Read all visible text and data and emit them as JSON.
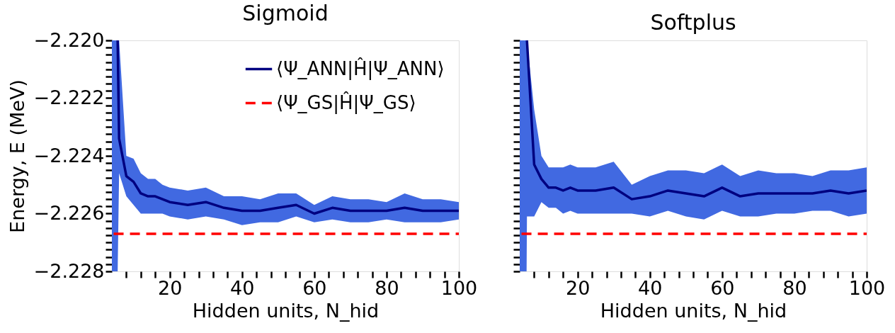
{
  "chart_data": [
    {
      "type": "line",
      "title": "Sigmoid",
      "xlabel": "Hidden units, N_hid",
      "ylabel": "Energy, E (MeV)",
      "xlim": [
        4,
        100
      ],
      "ylim": [
        -2.228,
        -2.22
      ],
      "legend": "top right",
      "grid": false,
      "xticks": [
        {
          "value": 8,
          "label": null
        },
        {
          "value": 12,
          "label": null
        },
        {
          "value": 16,
          "label": null
        },
        20,
        {
          "value": 24,
          "label": null
        },
        {
          "value": 28,
          "label": null
        },
        {
          "value": 32,
          "label": null
        },
        {
          "value": 36,
          "label": null
        },
        40,
        {
          "value": 44,
          "label": null
        },
        {
          "value": 48,
          "label": null
        },
        {
          "value": 52,
          "label": null
        },
        {
          "value": 56,
          "label": null
        },
        60,
        {
          "value": 64,
          "label": null
        },
        {
          "value": 68,
          "label": null
        },
        {
          "value": 72,
          "label": null
        },
        {
          "value": 76,
          "label": null
        },
        80,
        {
          "value": 84,
          "label": null
        },
        {
          "value": 88,
          "label": null
        },
        {
          "value": 92,
          "label": null
        },
        {
          "value": 96,
          "label": null
        },
        100
      ],
      "yticks": [
        {
          "value": -2.228,
          "label": "−2.228"
        },
        {
          "value": -2.22775,
          "label": null
        },
        {
          "value": -2.2275,
          "label": null
        },
        {
          "value": -2.22725,
          "label": null
        },
        {
          "value": -2.227,
          "label": null
        },
        {
          "value": -2.22675,
          "label": null
        },
        {
          "value": -2.2265,
          "label": null
        },
        {
          "value": -2.22625,
          "label": null
        },
        {
          "value": -2.226,
          "label": "−2.226"
        },
        {
          "value": -2.22575,
          "label": null
        },
        {
          "value": -2.2255,
          "label": null
        },
        {
          "value": -2.22525,
          "label": null
        },
        {
          "value": -2.225,
          "label": null
        },
        {
          "value": -2.22475,
          "label": null
        },
        {
          "value": -2.2245,
          "label": null
        },
        {
          "value": -2.22425,
          "label": null
        },
        {
          "value": -2.224,
          "label": "−2.224"
        },
        {
          "value": -2.22375,
          "label": null
        },
        {
          "value": -2.2235,
          "label": null
        },
        {
          "value": -2.22325,
          "label": null
        },
        {
          "value": -2.223,
          "label": null
        },
        {
          "value": -2.22275,
          "label": null
        },
        {
          "value": -2.2225,
          "label": null
        },
        {
          "value": -2.22225,
          "label": null
        },
        {
          "value": -2.222,
          "label": "−2.222"
        },
        {
          "value": -2.22175,
          "label": null
        },
        {
          "value": -2.2215,
          "label": null
        },
        {
          "value": -2.22125,
          "label": null
        },
        {
          "value": -2.221,
          "label": null
        },
        {
          "value": -2.22075,
          "label": null
        },
        {
          "value": -2.2205,
          "label": null
        },
        {
          "value": -2.22025,
          "label": null
        },
        {
          "value": -2.22,
          "label": "−2.220"
        }
      ],
      "series": [
        {
          "name": "⟨Ψ_ANN|Ĥ|Ψ_ANN⟩",
          "color": "#000080",
          "line_style": "solid",
          "x": [
            4,
            5.6,
            6,
            8,
            10,
            12,
            14,
            16,
            18,
            20,
            25,
            30,
            35,
            40,
            45,
            50,
            55,
            60,
            65,
            70,
            75,
            80,
            85,
            90,
            95,
            100
          ],
          "values": [
            null,
            -2.22,
            -2.2234,
            -2.2247,
            -2.2249,
            -2.2253,
            -2.2254,
            -2.2254,
            -2.2255,
            -2.2256,
            -2.2257,
            -2.2256,
            -2.2258,
            -2.2259,
            -2.2259,
            -2.2258,
            -2.2257,
            -2.226,
            -2.2258,
            -2.2259,
            -2.2259,
            -2.2259,
            -2.2258,
            -2.2259,
            -2.2259,
            -2.2259
          ],
          "lower": [
            -2.228,
            -2.228,
            -2.2246,
            -2.2254,
            -2.2257,
            -2.226,
            -2.226,
            -2.226,
            -2.226,
            -2.2261,
            -2.2262,
            -2.2261,
            -2.2262,
            -2.2264,
            -2.2263,
            -2.2263,
            -2.2261,
            -2.2263,
            -2.2262,
            -2.2263,
            -2.2263,
            -2.2262,
            -2.2263,
            -2.2263,
            -2.2263,
            -2.2262
          ],
          "upper": [
            -2.22,
            -2.22,
            -2.22,
            -2.224,
            -2.2241,
            -2.2246,
            -2.2248,
            -2.2248,
            -2.225,
            -2.2251,
            -2.2252,
            -2.2251,
            -2.2254,
            -2.2254,
            -2.2255,
            -2.2253,
            -2.2253,
            -2.2257,
            -2.2254,
            -2.2255,
            -2.2255,
            -2.2256,
            -2.2253,
            -2.2255,
            -2.2255,
            -2.2256
          ]
        },
        {
          "name": "⟨Ψ_GS|Ĥ|Ψ_GS⟩",
          "color": "#ff0000",
          "line_style": "dashed",
          "x": [
            4.5,
            100
          ],
          "values": [
            -2.2267,
            -2.2267
          ]
        }
      ]
    },
    {
      "type": "line",
      "title": "Softplus",
      "xlabel": "Hidden units, N_hid",
      "xlim": [
        4,
        100
      ],
      "ylim": [
        -2.228,
        -2.22
      ],
      "legend": false,
      "grid": false,
      "tick_labels": "x",
      "xticks": [
        {
          "value": 8,
          "label": null
        },
        {
          "value": 12,
          "label": null
        },
        {
          "value": 16,
          "label": null
        },
        20,
        {
          "value": 24,
          "label": null
        },
        {
          "value": 28,
          "label": null
        },
        {
          "value": 32,
          "label": null
        },
        {
          "value": 36,
          "label": null
        },
        40,
        {
          "value": 44,
          "label": null
        },
        {
          "value": 48,
          "label": null
        },
        {
          "value": 52,
          "label": null
        },
        {
          "value": 56,
          "label": null
        },
        60,
        {
          "value": 64,
          "label": null
        },
        {
          "value": 68,
          "label": null
        },
        {
          "value": 72,
          "label": null
        },
        {
          "value": 76,
          "label": null
        },
        80,
        {
          "value": 84,
          "label": null
        },
        {
          "value": 88,
          "label": null
        },
        {
          "value": 92,
          "label": null
        },
        {
          "value": 96,
          "label": null
        },
        100
      ],
      "yticks": [
        {
          "value": -2.228,
          "label": null
        },
        {
          "value": -2.22775,
          "label": null
        },
        {
          "value": -2.2275,
          "label": null
        },
        {
          "value": -2.22725,
          "label": null
        },
        {
          "value": -2.227,
          "label": null
        },
        {
          "value": -2.22675,
          "label": null
        },
        {
          "value": -2.2265,
          "label": null
        },
        {
          "value": -2.22625,
          "label": null
        },
        {
          "value": -2.226,
          "label": null
        },
        {
          "value": -2.22575,
          "label": null
        },
        {
          "value": -2.2255,
          "label": null
        },
        {
          "value": -2.22525,
          "label": null
        },
        {
          "value": -2.225,
          "label": null
        },
        {
          "value": -2.22475,
          "label": null
        },
        {
          "value": -2.2245,
          "label": null
        },
        {
          "value": -2.22425,
          "label": null
        },
        {
          "value": -2.224,
          "label": null
        },
        {
          "value": -2.22375,
          "label": null
        },
        {
          "value": -2.2235,
          "label": null
        },
        {
          "value": -2.22325,
          "label": null
        },
        {
          "value": -2.223,
          "label": null
        },
        {
          "value": -2.22275,
          "label": null
        },
        {
          "value": -2.2225,
          "label": null
        },
        {
          "value": -2.22225,
          "label": null
        },
        {
          "value": -2.222,
          "label": null
        },
        {
          "value": -2.22175,
          "label": null
        },
        {
          "value": -2.2215,
          "label": null
        },
        {
          "value": -2.22125,
          "label": null
        },
        {
          "value": -2.221,
          "label": null
        },
        {
          "value": -2.22075,
          "label": null
        },
        {
          "value": -2.2205,
          "label": null
        },
        {
          "value": -2.22025,
          "label": null
        },
        {
          "value": -2.22,
          "label": null
        }
      ],
      "series": [
        {
          "color": "#000080",
          "line_style": "solid",
          "x": [
            4,
            5.9,
            6,
            8,
            10,
            12,
            14,
            16,
            18,
            20,
            25,
            30,
            35,
            40,
            45,
            50,
            55,
            60,
            65,
            70,
            75,
            80,
            85,
            90,
            95,
            100
          ],
          "values": [
            null,
            null,
            -2.22,
            -2.2243,
            -2.2248,
            -2.2251,
            -2.2251,
            -2.2252,
            -2.2251,
            -2.2252,
            -2.2252,
            -2.2251,
            -2.2255,
            -2.2254,
            -2.2252,
            -2.2253,
            -2.2254,
            -2.2251,
            -2.2254,
            -2.2253,
            -2.2253,
            -2.2253,
            -2.2253,
            -2.2252,
            -2.2253,
            -2.2252
          ],
          "lower": [
            -2.228,
            -2.228,
            -2.2261,
            -2.2261,
            -2.2256,
            -2.2258,
            -2.2258,
            -2.226,
            -2.2259,
            -2.226,
            -2.226,
            -2.226,
            -2.226,
            -2.2261,
            -2.2259,
            -2.2261,
            -2.2262,
            -2.2259,
            -2.2261,
            -2.2261,
            -2.226,
            -2.226,
            -2.2259,
            -2.2259,
            -2.2261,
            -2.226
          ],
          "upper": [
            -2.22,
            -2.22,
            -2.22,
            -2.2224,
            -2.224,
            -2.2244,
            -2.2244,
            -2.2244,
            -2.2243,
            -2.2244,
            -2.2244,
            -2.2242,
            -2.225,
            -2.2247,
            -2.2245,
            -2.2245,
            -2.2246,
            -2.2243,
            -2.2247,
            -2.2245,
            -2.2246,
            -2.2246,
            -2.2247,
            -2.2245,
            -2.2245,
            -2.2244
          ]
        },
        {
          "color": "#ff0000",
          "line_style": "dashed",
          "x": [
            4.5,
            100
          ],
          "values": [
            -2.2267,
            -2.2267
          ]
        }
      ]
    }
  ]
}
